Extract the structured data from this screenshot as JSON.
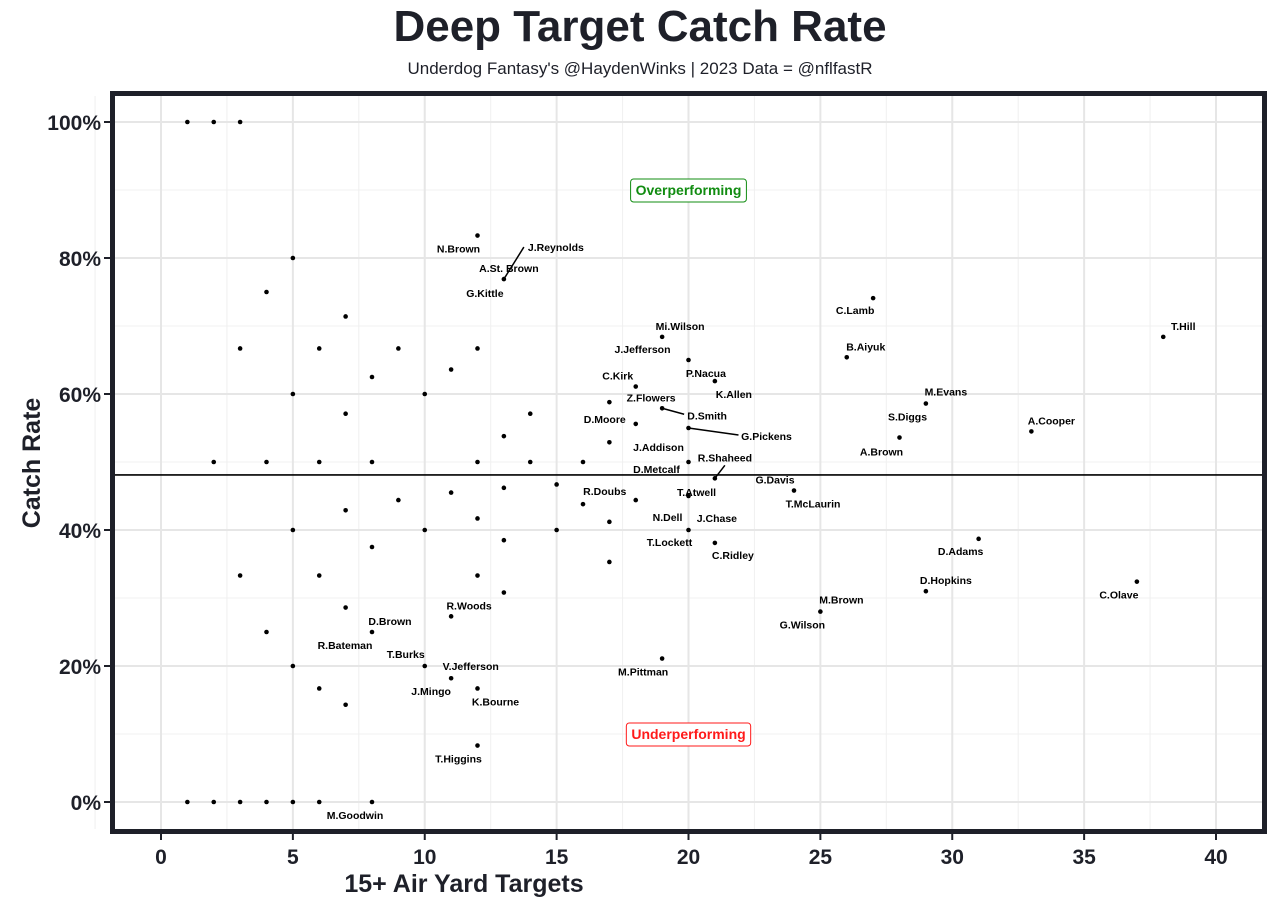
{
  "chart_data": {
    "type": "scatter",
    "title": "Deep Target Catch Rate",
    "subtitle": "Underdog Fantasy's @HaydenWinks | 2023 Data = @nflfastR",
    "xlabel": "15+ Air Yard Targets",
    "ylabel": "Catch Rate",
    "xlim": [
      -2,
      42
    ],
    "ylim": [
      -5,
      105
    ],
    "xticks": [
      0,
      5,
      10,
      15,
      20,
      25,
      30,
      35,
      40
    ],
    "xtick_labels": [
      "0",
      "5",
      "10",
      "15",
      "20",
      "25",
      "30",
      "35",
      "40"
    ],
    "yticks": [
      0,
      20,
      40,
      60,
      80,
      100
    ],
    "ytick_labels": [
      "0%",
      "20%",
      "40%",
      "60%",
      "80%",
      "100%"
    ],
    "grid": true,
    "reference_line_y": 48.1,
    "annotations": [
      {
        "text": "Overperforming",
        "x": 20,
        "y": 90,
        "color": "#118c11"
      },
      {
        "text": "Underperforming",
        "x": 20,
        "y": 10,
        "color": "#ff1a1a"
      }
    ],
    "points": [
      {
        "x": 1,
        "y": 100,
        "labels": []
      },
      {
        "x": 2,
        "y": 100,
        "labels": []
      },
      {
        "x": 3,
        "y": 100,
        "labels": []
      },
      {
        "x": 12,
        "y": 83.3,
        "labels": [
          "N.Brown"
        ]
      },
      {
        "x": 5,
        "y": 80,
        "labels": []
      },
      {
        "x": 13,
        "y": 76.9,
        "labels": [
          "J.Reynolds",
          "A.St. Brown",
          "G.Kittle"
        ]
      },
      {
        "x": 4,
        "y": 75,
        "labels": []
      },
      {
        "x": 27,
        "y": 74.1,
        "labels": [
          "C.Lamb"
        ]
      },
      {
        "x": 7,
        "y": 71.4,
        "labels": []
      },
      {
        "x": 38,
        "y": 68.4,
        "labels": [
          "T.Hill"
        ]
      },
      {
        "x": 19,
        "y": 68.4,
        "labels": [
          "Mi.Wilson"
        ]
      },
      {
        "x": 3,
        "y": 66.7,
        "labels": []
      },
      {
        "x": 6,
        "y": 66.7,
        "labels": []
      },
      {
        "x": 9,
        "y": 66.7,
        "labels": []
      },
      {
        "x": 12,
        "y": 66.7,
        "labels": []
      },
      {
        "x": 26,
        "y": 65.4,
        "labels": [
          "B.Aiyuk"
        ]
      },
      {
        "x": 20,
        "y": 65,
        "labels": [
          "J.Jefferson"
        ]
      },
      {
        "x": 11,
        "y": 63.6,
        "labels": []
      },
      {
        "x": 8,
        "y": 62.5,
        "labels": []
      },
      {
        "x": 21,
        "y": 61.9,
        "labels": [
          "P.Nacua",
          "K.Allen"
        ]
      },
      {
        "x": 18,
        "y": 61.1,
        "labels": [
          "C.Kirk"
        ]
      },
      {
        "x": 5,
        "y": 60,
        "labels": []
      },
      {
        "x": 10,
        "y": 60,
        "labels": []
      },
      {
        "x": 17,
        "y": 58.8,
        "labels": []
      },
      {
        "x": 29,
        "y": 58.6,
        "labels": [
          "M.Evans"
        ]
      },
      {
        "x": 19,
        "y": 57.9,
        "labels": [
          "Z.Flowers",
          "D.Smith"
        ]
      },
      {
        "x": 7,
        "y": 57.1,
        "labels": []
      },
      {
        "x": 14,
        "y": 57.1,
        "labels": []
      },
      {
        "x": 18,
        "y": 55.6,
        "labels": [
          "D.Moore"
        ]
      },
      {
        "x": 20,
        "y": 55,
        "labels": [
          "G.Pickens"
        ]
      },
      {
        "x": 33,
        "y": 54.5,
        "labels": [
          "A.Cooper"
        ]
      },
      {
        "x": 28,
        "y": 53.6,
        "labels": [
          "S.Diggs",
          "A.Brown"
        ]
      },
      {
        "x": 13,
        "y": 53.8,
        "labels": []
      },
      {
        "x": 17,
        "y": 52.9,
        "labels": []
      },
      {
        "x": 20,
        "y": 50,
        "labels": [
          "J.Addison",
          "D.Metcalf"
        ]
      },
      {
        "x": 2,
        "y": 50,
        "labels": []
      },
      {
        "x": 4,
        "y": 50,
        "labels": []
      },
      {
        "x": 6,
        "y": 50,
        "labels": []
      },
      {
        "x": 8,
        "y": 50,
        "labels": []
      },
      {
        "x": 12,
        "y": 50,
        "labels": []
      },
      {
        "x": 14,
        "y": 50,
        "labels": []
      },
      {
        "x": 16,
        "y": 50,
        "labels": []
      },
      {
        "x": 21,
        "y": 47.6,
        "labels": [
          "R.Shaheed"
        ]
      },
      {
        "x": 24,
        "y": 45.8,
        "labels": [
          "G.Davis",
          "T.McLaurin"
        ]
      },
      {
        "x": 15,
        "y": 46.7,
        "labels": []
      },
      {
        "x": 13,
        "y": 46.2,
        "labels": []
      },
      {
        "x": 11,
        "y": 45.5,
        "labels": []
      },
      {
        "x": 20,
        "y": 45,
        "labels": [
          "T.Atwell"
        ]
      },
      {
        "x": 9,
        "y": 44.4,
        "labels": []
      },
      {
        "x": 18,
        "y": 44.4,
        "labels": [
          "R.Doubs"
        ]
      },
      {
        "x": 16,
        "y": 43.8,
        "labels": []
      },
      {
        "x": 7,
        "y": 42.9,
        "labels": []
      },
      {
        "x": 12,
        "y": 41.7,
        "labels": []
      },
      {
        "x": 17,
        "y": 41.2,
        "labels": []
      },
      {
        "x": 5,
        "y": 40,
        "labels": []
      },
      {
        "x": 10,
        "y": 40,
        "labels": []
      },
      {
        "x": 15,
        "y": 40,
        "labels": []
      },
      {
        "x": 20,
        "y": 40,
        "labels": [
          "N.Dell",
          "T.Lockett"
        ]
      },
      {
        "x": 21,
        "y": 38.1,
        "labels": [
          "J.Chase",
          "C.Ridley"
        ]
      },
      {
        "x": 31,
        "y": 38.7,
        "labels": [
          "D.Adams"
        ]
      },
      {
        "x": 13,
        "y": 38.5,
        "labels": []
      },
      {
        "x": 8,
        "y": 37.5,
        "labels": []
      },
      {
        "x": 17,
        "y": 35.3,
        "labels": []
      },
      {
        "x": 3,
        "y": 33.3,
        "labels": []
      },
      {
        "x": 6,
        "y": 33.3,
        "labels": []
      },
      {
        "x": 12,
        "y": 33.3,
        "labels": []
      },
      {
        "x": 37,
        "y": 32.4,
        "labels": [
          "C.Olave"
        ]
      },
      {
        "x": 29,
        "y": 31,
        "labels": [
          "D.Hopkins"
        ]
      },
      {
        "x": 13,
        "y": 30.8,
        "labels": []
      },
      {
        "x": 7,
        "y": 28.6,
        "labels": []
      },
      {
        "x": 25,
        "y": 28,
        "labels": [
          "M.Brown",
          "G.Wilson"
        ]
      },
      {
        "x": 11,
        "y": 27.3,
        "labels": [
          "R.Woods"
        ]
      },
      {
        "x": 4,
        "y": 25,
        "labels": []
      },
      {
        "x": 8,
        "y": 25,
        "labels": [
          "D.Brown",
          "R.Bateman"
        ]
      },
      {
        "x": 19,
        "y": 21.1,
        "labels": [
          "M.Pittman"
        ]
      },
      {
        "x": 5,
        "y": 20,
        "labels": []
      },
      {
        "x": 10,
        "y": 20,
        "labels": [
          "T.Burks",
          "V.Jefferson"
        ]
      },
      {
        "x": 11,
        "y": 18.2,
        "labels": [
          "J.Mingo"
        ]
      },
      {
        "x": 12,
        "y": 16.7,
        "labels": [
          "K.Bourne"
        ]
      },
      {
        "x": 6,
        "y": 16.7,
        "labels": []
      },
      {
        "x": 7,
        "y": 14.3,
        "labels": []
      },
      {
        "x": 12,
        "y": 8.3,
        "labels": [
          "T.Higgins"
        ]
      },
      {
        "x": 1,
        "y": 0,
        "labels": []
      },
      {
        "x": 2,
        "y": 0,
        "labels": []
      },
      {
        "x": 3,
        "y": 0,
        "labels": []
      },
      {
        "x": 4,
        "y": 0,
        "labels": []
      },
      {
        "x": 5,
        "y": 0,
        "labels": []
      },
      {
        "x": 6,
        "y": 0,
        "labels": []
      },
      {
        "x": 8,
        "y": 0,
        "labels": [
          "M.Goodwin"
        ]
      }
    ]
  },
  "colors": {
    "frame": "#1e2029",
    "grid": "#e6e6e6",
    "point": "#000000"
  }
}
